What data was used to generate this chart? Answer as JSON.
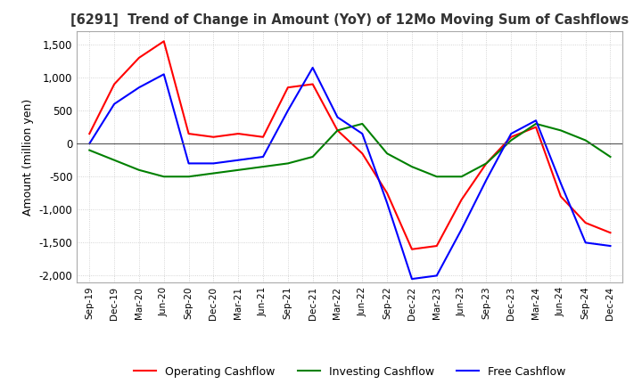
{
  "title": "[6291]  Trend of Change in Amount (YoY) of 12Mo Moving Sum of Cashflows",
  "ylabel": "Amount (million yen)",
  "ylim": [
    -2100,
    1700
  ],
  "yticks": [
    -2000,
    -1500,
    -1000,
    -500,
    0,
    500,
    1000,
    1500
  ],
  "x_labels": [
    "Sep-19",
    "Dec-19",
    "Mar-20",
    "Jun-20",
    "Sep-20",
    "Dec-20",
    "Mar-21",
    "Jun-21",
    "Sep-21",
    "Dec-21",
    "Mar-22",
    "Jun-22",
    "Sep-22",
    "Dec-22",
    "Mar-23",
    "Jun-23",
    "Sep-23",
    "Dec-23",
    "Mar-24",
    "Jun-24",
    "Sep-24",
    "Dec-24"
  ],
  "operating": [
    150,
    900,
    1300,
    1550,
    150,
    100,
    150,
    100,
    850,
    900,
    200,
    -150,
    -750,
    -1600,
    -1550,
    -850,
    -300,
    100,
    250,
    -800,
    -1200,
    -1350
  ],
  "investing": [
    -100,
    -250,
    -400,
    -500,
    -500,
    -450,
    -400,
    -350,
    -300,
    -200,
    200,
    300,
    -150,
    -350,
    -500,
    -500,
    -300,
    50,
    300,
    200,
    50,
    -200
  ],
  "free": [
    0,
    600,
    850,
    1050,
    -300,
    -300,
    -250,
    -200,
    500,
    1150,
    400,
    150,
    -900,
    -2050,
    -2000,
    -1300,
    -550,
    150,
    350,
    -600,
    -1500,
    -1550
  ],
  "operating_color": "#ff0000",
  "investing_color": "#008000",
  "free_color": "#0000ff",
  "background_color": "#ffffff",
  "grid_color": "#c8c8c8"
}
